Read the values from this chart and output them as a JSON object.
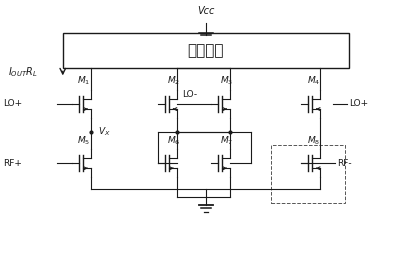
{
  "title": "Vcc",
  "load_label": "负载电阻",
  "iout_label": "I_{OUT}R_L",
  "background": "#ffffff",
  "line_color": "#1a1a1a",
  "text_color": "#1a1a1a",
  "fig_width": 4.12,
  "fig_height": 2.71,
  "dpi": 100
}
